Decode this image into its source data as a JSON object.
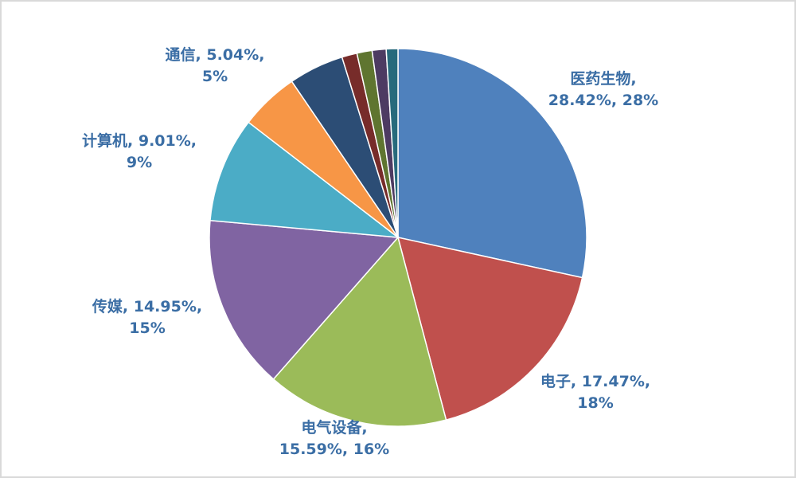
{
  "chart_data": {
    "type": "pie",
    "values": [
      28.42,
      17.47,
      15.59,
      14.95,
      9.01,
      5.04,
      4.72,
      1.3,
      1.3,
      1.2,
      1.0
    ],
    "value_labels": [
      [
        "医药生物,",
        "28.42%, 28%"
      ],
      [
        "电子, 17.47%,",
        "18%"
      ],
      [
        "电气设备,",
        "15.59%, 16%"
      ],
      [
        "传媒, 14.95%,",
        "15%"
      ],
      [
        "计算机, 9.01%,",
        "9%"
      ],
      [
        "通信, 5.04%,",
        "5%"
      ],
      null,
      null,
      null,
      null,
      null
    ],
    "colors": [
      "#4f81bd",
      "#c0504d",
      "#9bbb59",
      "#8064a2",
      "#4bacc6",
      "#f79646",
      "#2c4d75",
      "#772c2a",
      "#5f7530",
      "#4d3b62",
      "#276a7c"
    ]
  }
}
